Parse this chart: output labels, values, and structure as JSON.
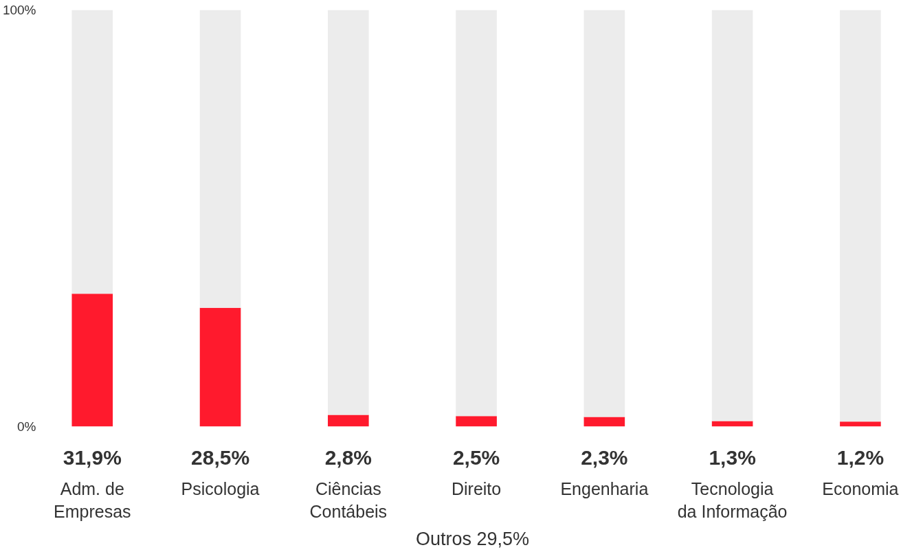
{
  "chart_data": {
    "type": "bar",
    "stacked": true,
    "categories": [
      "Adm. de\nEmpresas",
      "Psicologia",
      "Ciências\nContábeis",
      "Direito",
      "Engenharia",
      "Tecnologia\nda Informação",
      "Economia"
    ],
    "series": [
      {
        "color": "#ff1a2d",
        "values": [
          31.9,
          28.5,
          2.8,
          2.5,
          2.3,
          1.3,
          1.2
        ],
        "value_labels": [
          "31,9%",
          "28,5%",
          "2,8%",
          "2,5%",
          "2,3%",
          "1,3%",
          "1,2%"
        ]
      },
      {
        "color": "#ececec",
        "values": [
          68.1,
          71.5,
          97.2,
          97.5,
          97.7,
          98.7,
          98.8
        ]
      }
    ],
    "ylim": [
      0,
      100
    ],
    "yticks": [
      {
        "value": 0,
        "label": "0%"
      },
      {
        "value": 100,
        "label": "100%"
      }
    ],
    "annotations": [
      "Outros 29,5%"
    ]
  }
}
